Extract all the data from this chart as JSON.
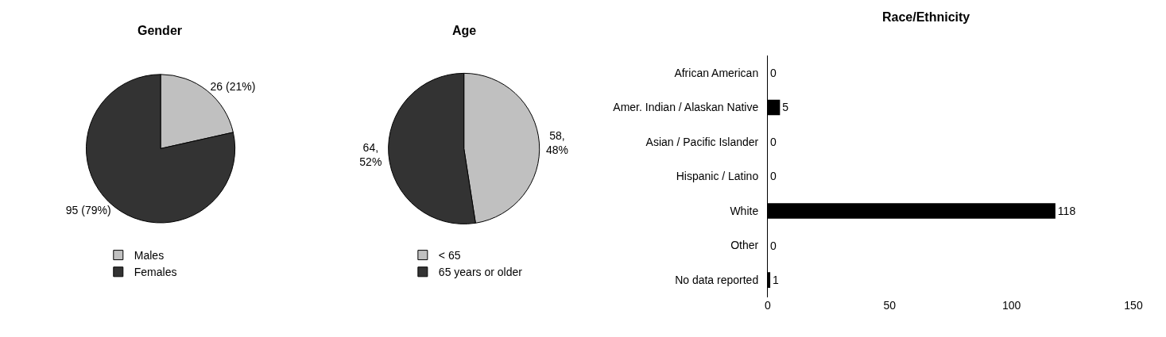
{
  "chart_data": [
    {
      "type": "pie",
      "title": "Gender",
      "categories": [
        "Males",
        "Females"
      ],
      "values": [
        26,
        95
      ],
      "colors": [
        "#c0c0c0",
        "#333333"
      ],
      "value_labels": [
        "26 (21%)",
        "95 (79%)"
      ],
      "legend": "bottom"
    },
    {
      "type": "pie",
      "title": "Age",
      "categories": [
        "< 65",
        "65 years or older"
      ],
      "values": [
        58,
        64
      ],
      "colors": [
        "#c0c0c0",
        "#333333"
      ],
      "value_labels": [
        "58,\n48%",
        "64,\n52%"
      ],
      "legend": "bottom"
    },
    {
      "type": "bar",
      "orientation": "horizontal",
      "title": "Race/Ethnicity",
      "categories": [
        "African American",
        "Amer. Indian / Alaskan Native",
        "Asian / Pacific Islander",
        "Hispanic / Latino",
        "White",
        "Other",
        "No data reported"
      ],
      "values": [
        0,
        5,
        0,
        0,
        118,
        0,
        1
      ],
      "color": "#000000",
      "xlim": [
        0,
        150
      ],
      "xticks": [
        0,
        50,
        100,
        150
      ],
      "data_labels": true
    }
  ]
}
